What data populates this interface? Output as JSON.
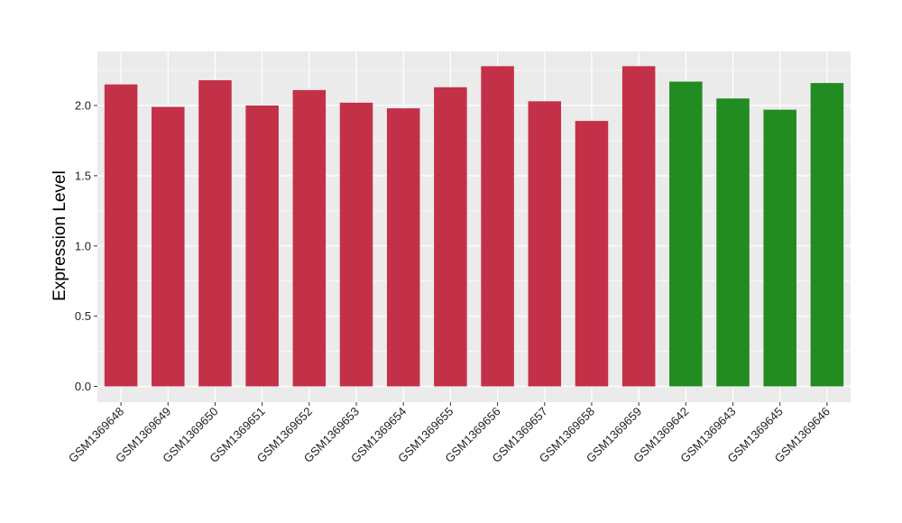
{
  "chart_data": {
    "type": "bar",
    "title": "",
    "xlabel": "",
    "ylabel": "Expression Level",
    "ylim": [
      0,
      2.38
    ],
    "yticks": [
      0.0,
      0.5,
      1.0,
      1.5,
      2.0
    ],
    "ytick_labels": [
      "0.0",
      "0.5",
      "1.0",
      "1.5",
      "2.0"
    ],
    "grid": true,
    "legend": "none",
    "panel_color": "#ebebeb",
    "grid_color": "#ffffff",
    "categories": [
      "GSM1369648",
      "GSM1369649",
      "GSM1369650",
      "GSM1369651",
      "GSM1369652",
      "GSM1369653",
      "GSM1369654",
      "GSM1369655",
      "GSM1369656",
      "GSM1369657",
      "GSM1369658",
      "GSM1369659",
      "GSM1369642",
      "GSM1369643",
      "GSM1369645",
      "GSM1369646"
    ],
    "values": [
      2.15,
      1.99,
      2.18,
      2.0,
      2.11,
      2.02,
      1.98,
      2.13,
      2.28,
      2.03,
      1.89,
      2.28,
      2.17,
      2.05,
      1.97,
      2.16
    ],
    "colors": [
      "#c33149",
      "#c33149",
      "#c33149",
      "#c33149",
      "#c33149",
      "#c33149",
      "#c33149",
      "#c33149",
      "#c33149",
      "#c33149",
      "#c33149",
      "#c33149",
      "#228b22",
      "#228b22",
      "#228b22",
      "#228b22"
    ]
  }
}
